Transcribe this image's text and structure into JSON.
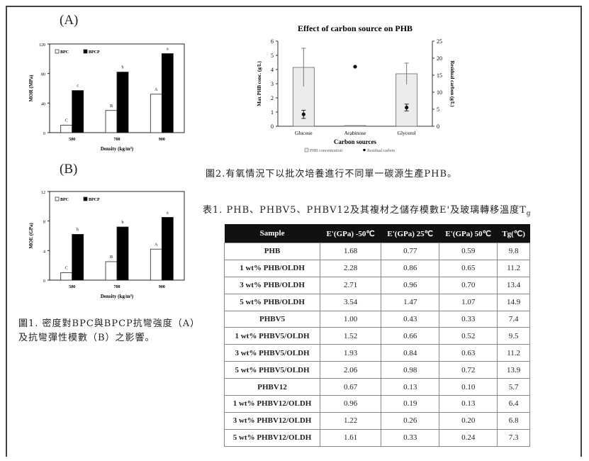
{
  "fig1": {
    "panel_a_label": "(A)",
    "panel_b_label": "(B)",
    "caption": "圖1. 密度對BPC與BPCP抗彎強度（A）及抗彎彈性模數（B）之影響。"
  },
  "fig2": {
    "caption": "圖2.有氧情況下以批次培養進行不同單一碳源生產PHB。"
  },
  "table1": {
    "title_main": "表1. PHB、PHBV5、PHBV12及其複材之儲存模數E'及玻璃轉移溫度T",
    "title_sub": "g",
    "headers": [
      "Sample",
      "E'(GPa) -50℃",
      "E'(GPa) 25℃",
      "E'(GPa) 50℃",
      "Tg(℃)"
    ],
    "rows": [
      [
        "PHB",
        "1.68",
        "0.77",
        "0.59",
        "9.8"
      ],
      [
        "1 wt% PHB/OLDH",
        "2.28",
        "0.86",
        "0.65",
        "11.2"
      ],
      [
        "3 wt% PHB/OLDH",
        "2.71",
        "0.96",
        "0.70",
        "13.4"
      ],
      [
        "5 wt% PHB/OLDH",
        "3.54",
        "1.47",
        "1.07",
        "14.9"
      ],
      [
        "PHBV5",
        "1.00",
        "0.43",
        "0.33",
        "7.4"
      ],
      [
        "1 wt% PHBV5/OLDH",
        "1.52",
        "0.66",
        "0.52",
        "9.5"
      ],
      [
        "3 wt% PHBV5/OLDH",
        "1.93",
        "0.84",
        "0.63",
        "11.2"
      ],
      [
        "5 wt% PHBV5/OLDH",
        "2.06",
        "0.98",
        "0.72",
        "13.9"
      ],
      [
        "PHBV12",
        "0.67",
        "0.13",
        "0.10",
        "5.7"
      ],
      [
        "1 wt% PHBV12/OLDH",
        "0.96",
        "0.19",
        "0.13",
        "6.4"
      ],
      [
        "3 wt% PHBV12/OLDH",
        "1.22",
        "0.26",
        "0.20",
        "6.8"
      ],
      [
        "5 wt% PHBV12/OLDH",
        "1.61",
        "0.33",
        "0.24",
        "7.3"
      ]
    ]
  },
  "chart_data": [
    {
      "type": "bar",
      "categories": [
        "500",
        "700",
        "900"
      ],
      "series": [
        {
          "name": "BPC",
          "values": [
            10,
            30,
            52
          ],
          "letters": [
            "C",
            "B",
            "A"
          ],
          "color": "#ffffff"
        },
        {
          "name": "BPCP",
          "values": [
            57,
            82,
            107
          ],
          "letters": [
            "c",
            "b",
            "a"
          ],
          "color": "#000000"
        }
      ],
      "xlabel": "Density (kg/m³)",
      "ylabel": "MOR (MPa)",
      "ylim": [
        0,
        120
      ],
      "yticks": [
        "0",
        "40",
        "80",
        "120"
      ],
      "legend": "top-left"
    },
    {
      "type": "bar",
      "categories": [
        "500",
        "700",
        "900"
      ],
      "series": [
        {
          "name": "BPC",
          "values": [
            1.0,
            2.5,
            4.2
          ],
          "letters": [
            "C",
            "B",
            "A"
          ],
          "color": "#ffffff"
        },
        {
          "name": "BPCP",
          "values": [
            6.2,
            7.2,
            8.5
          ],
          "letters": [
            "b",
            "b",
            "a"
          ],
          "color": "#000000"
        }
      ],
      "xlabel": "Density (kg/m³)",
      "ylabel": "MOE (GPa)",
      "ylim": [
        0,
        12
      ],
      "yticks": [
        "0",
        "4",
        "8",
        "12"
      ],
      "legend": "top-left"
    },
    {
      "type": "bar",
      "title": "Effect of carbon source on PHB",
      "categories": [
        "Glucose",
        "Arabinose",
        "Glycerol"
      ],
      "series": [
        {
          "name": "PHB concentration",
          "values": [
            4.15,
            0.05,
            3.7
          ],
          "error": [
            1.35,
            0,
            0.75
          ],
          "axis": "left"
        },
        {
          "name": "Residual carbon",
          "values": [
            3.5,
            17.5,
            5.5
          ],
          "error": [
            1.2,
            0,
            1.0
          ],
          "axis": "right"
        }
      ],
      "xlabel": "Carbon sources",
      "ylabel": "Max PHB conc. (g/L)",
      "ylabel_right": "Residual carbon (g/L)",
      "ylim": [
        0,
        6
      ],
      "ylim_right": [
        0,
        25
      ],
      "yticks": [
        "0",
        "1",
        "2",
        "3",
        "4",
        "5",
        "6"
      ],
      "yticks_right": [
        "0",
        "5",
        "10",
        "15",
        "20",
        "25"
      ],
      "legend": "bottom"
    }
  ]
}
